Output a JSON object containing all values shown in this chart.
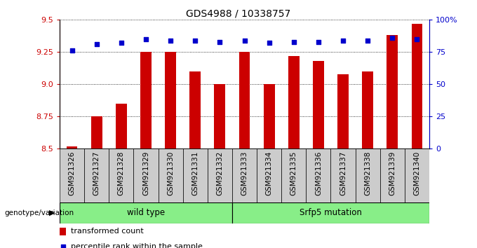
{
  "title": "GDS4988 / 10338757",
  "samples": [
    "GSM921326",
    "GSM921327",
    "GSM921328",
    "GSM921329",
    "GSM921330",
    "GSM921331",
    "GSM921332",
    "GSM921333",
    "GSM921334",
    "GSM921335",
    "GSM921336",
    "GSM921337",
    "GSM921338",
    "GSM921339",
    "GSM921340"
  ],
  "transformed_count": [
    8.52,
    8.75,
    8.85,
    9.25,
    9.25,
    9.1,
    9.0,
    9.25,
    9.0,
    9.22,
    9.18,
    9.08,
    9.1,
    9.38,
    9.47
  ],
  "percentile_rank": [
    76,
    81,
    82,
    85,
    84,
    84,
    83,
    84,
    82,
    83,
    83,
    84,
    84,
    86,
    85
  ],
  "ylim_left": [
    8.5,
    9.5
  ],
  "ylim_right": [
    0,
    100
  ],
  "yticks_left": [
    8.5,
    8.75,
    9.0,
    9.25,
    9.5
  ],
  "yticks_right": [
    0,
    25,
    50,
    75,
    100
  ],
  "bar_color": "#cc0000",
  "dot_color": "#0000cc",
  "wild_type_count": 7,
  "wild_type_label": "wild type",
  "mutation_label": "Srfp5 mutation",
  "group_bg_color": "#88ee88",
  "sample_bg_color": "#cccccc",
  "legend_bar_label": "transformed count",
  "legend_dot_label": "percentile rank within the sample",
  "genotype_label": "genotype/variation",
  "title_fontsize": 10,
  "tick_fontsize": 8,
  "label_fontsize": 7.5,
  "group_fontsize": 8.5,
  "legend_fontsize": 8,
  "bar_width": 0.45
}
